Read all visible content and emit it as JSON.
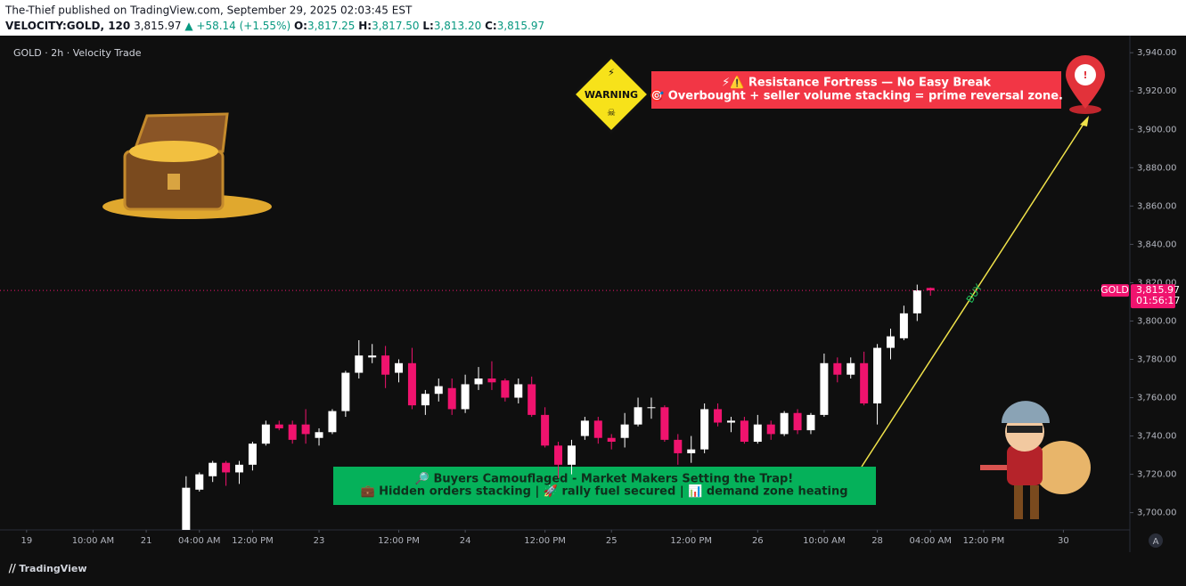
{
  "header": {
    "publisher": "The-Thief published on TradingView.com, September 29, 2025 02:03:45 EST",
    "symbol": "VELOCITY:GOLD, 120",
    "last": "3,815.97",
    "change": "▲ +58.14 (+1.55%)",
    "o_label": "O:",
    "o": "3,817.25",
    "h_label": "H:",
    "h": "3,817.50",
    "l_label": "L:",
    "l": "3,813.20",
    "c_label": "C:",
    "c": "3,815.97"
  },
  "chart_data": {
    "type": "candlestick",
    "title": "GOLD · 2h · Velocity Trade",
    "up_color": "#ffffff",
    "down_color": "#f0136e",
    "open": [
      3691,
      3712,
      3719,
      3726,
      3721,
      3725,
      3736,
      3746,
      3746,
      3746,
      3739,
      3742,
      3753,
      3773,
      3781,
      3782,
      3773,
      3778,
      3756,
      3762,
      3765,
      3754,
      3767,
      3770,
      3769,
      3760,
      3767,
      3751,
      3735,
      3725,
      3740,
      3748,
      3739,
      3739,
      3746,
      3755,
      3755,
      3738,
      3731,
      3733,
      3754,
      3747,
      3748,
      3737,
      3746,
      3741,
      3752,
      3743,
      3751,
      3778,
      3772,
      3778,
      3757,
      3786,
      3791,
      3804,
      3817.25
    ],
    "high": [
      3719,
      3721,
      3727,
      3727,
      3727,
      3737,
      3748,
      3748,
      3748,
      3754,
      3744,
      3754,
      3774,
      3790,
      3788,
      3787,
      3780,
      3786,
      3764,
      3770,
      3770,
      3772,
      3776,
      3779,
      3770,
      3770,
      3771,
      3755,
      3737,
      3738,
      3750,
      3750,
      3741,
      3752,
      3760,
      3760,
      3756,
      3741,
      3740,
      3757,
      3757,
      3750,
      3750,
      3751,
      3748,
      3753,
      3754,
      3752,
      3783,
      3781,
      3781,
      3784,
      3788,
      3796,
      3808,
      3819,
      3817.5
    ],
    "low": [
      3691,
      3711,
      3716,
      3714,
      3715,
      3722,
      3735,
      3743,
      3736,
      3736,
      3735,
      3741,
      3750,
      3770,
      3778,
      3765,
      3768,
      3754,
      3751,
      3758,
      3751,
      3752,
      3764,
      3764,
      3758,
      3757,
      3750,
      3734,
      3718,
      3720,
      3738,
      3736,
      3733,
      3734,
      3745,
      3749,
      3737,
      3725,
      3726,
      3731,
      3745,
      3742,
      3736,
      3736,
      3738,
      3740,
      3741,
      3741,
      3750,
      3768,
      3770,
      3756,
      3746,
      3780,
      3790,
      3800,
      3813.2
    ],
    "close": [
      3713,
      3720,
      3726,
      3721,
      3725,
      3736,
      3746,
      3744,
      3738,
      3741,
      3742,
      3753,
      3773,
      3782,
      3782,
      3772,
      3778,
      3756,
      3762,
      3766,
      3754,
      3767,
      3770,
      3768,
      3760,
      3767,
      3751,
      3735,
      3725,
      3735,
      3748,
      3739,
      3737,
      3746,
      3755,
      3755,
      3738,
      3731,
      3733,
      3754,
      3747,
      3748,
      3737,
      3746,
      3741,
      3752,
      3743,
      3751,
      3778,
      3772,
      3778,
      3757,
      3786,
      3792,
      3804,
      3816,
      3815.97
    ],
    "xlim": [
      -14,
      71
    ],
    "xticks": [
      {
        "value": -12,
        "label": "19"
      },
      {
        "value": -7,
        "label": "10:00 AM"
      },
      {
        "value": -3,
        "label": "21"
      },
      {
        "value": 1,
        "label": "04:00 AM"
      },
      {
        "value": 5,
        "label": "12:00 PM"
      },
      {
        "value": 10,
        "label": "23"
      },
      {
        "value": 16,
        "label": "12:00 PM"
      },
      {
        "value": 21,
        "label": "24"
      },
      {
        "value": 27,
        "label": "12:00 PM"
      },
      {
        "value": 32,
        "label": "25"
      },
      {
        "value": 38,
        "label": "12:00 PM"
      },
      {
        "value": 43,
        "label": "26"
      },
      {
        "value": 48,
        "label": "10:00 AM"
      },
      {
        "value": 52,
        "label": "28"
      },
      {
        "value": 56,
        "label": "04:00 AM"
      },
      {
        "value": 60,
        "label": "12:00 PM"
      },
      {
        "value": 66,
        "label": "30"
      }
    ],
    "ylim": [
      3691,
      3948
    ],
    "yticks": [
      {
        "value": 3700,
        "label": "3,700.00"
      },
      {
        "value": 3720,
        "label": "3,720.00"
      },
      {
        "value": 3740,
        "label": "3,740.00"
      },
      {
        "value": 3760,
        "label": "3,760.00"
      },
      {
        "value": 3780,
        "label": "3,780.00"
      },
      {
        "value": 3800,
        "label": "3,800.00"
      },
      {
        "value": 3820,
        "label": "3,820.00"
      },
      {
        "value": 3840,
        "label": "3,840.00"
      },
      {
        "value": 3860,
        "label": "3,860.00"
      },
      {
        "value": 3880,
        "label": "3,880.00"
      },
      {
        "value": 3900,
        "label": "3,900.00"
      },
      {
        "value": 3920,
        "label": "3,920.00"
      },
      {
        "value": 3940,
        "label": "3,940.00"
      }
    ],
    "last_price": {
      "value": 3815.97,
      "label": "3,815.97"
    },
    "symbol_tag": "GOLD",
    "countdown": "01:56:17",
    "annotations": {
      "warning": "WARNING",
      "resistance_title": "⚡⚠️ Resistance Fortress — No Easy Break",
      "resistance_text": "🎯 Overbought + seller volume stacking = prime reversal zone.",
      "buyers_title": "🔎 Buyers Camouflaged - Market Makers Setting the Trap!",
      "buyers_text": "💼 Hidden orders stacking | 🚀 rally fuel secured | 📊 demand zone heating",
      "buy": "BUY"
    }
  },
  "footer": {
    "brand": "TradingView",
    "scale_button": "A"
  }
}
